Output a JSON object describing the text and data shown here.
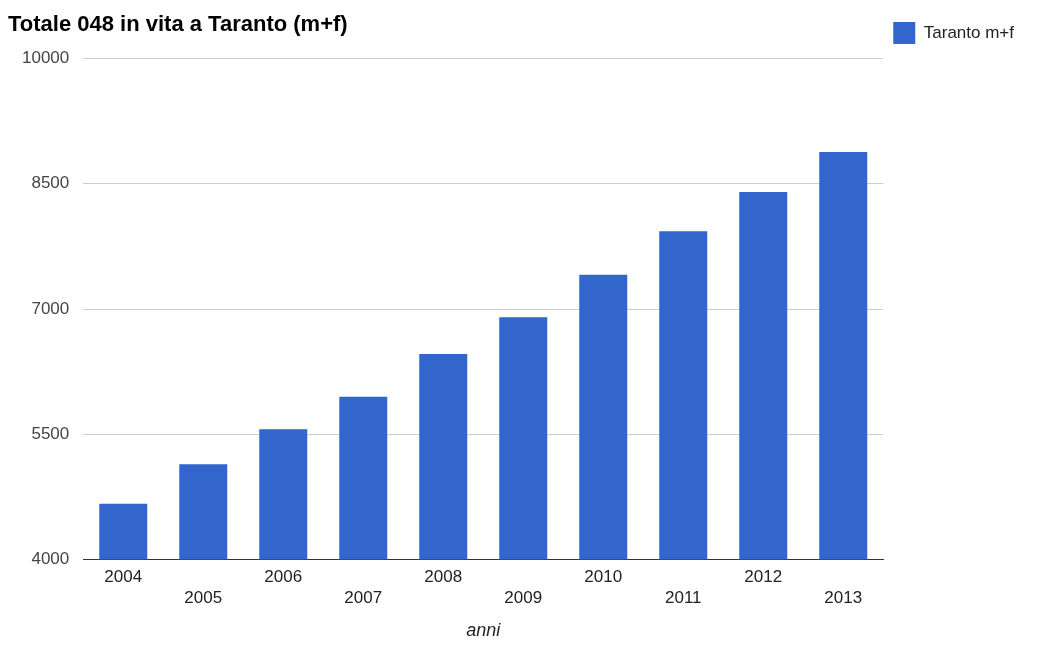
{
  "chart_data": {
    "type": "bar",
    "title": "Totale 048 in vita a Taranto (m+f)",
    "xlabel": "anni",
    "categories": [
      "2004",
      "2005",
      "2006",
      "2007",
      "2008",
      "2009",
      "2010",
      "2011",
      "2012",
      "2013"
    ],
    "series": [
      {
        "name": "Taranto m+f",
        "color": "#3366cc",
        "values": [
          4670,
          5140,
          5560,
          5950,
          6460,
          6900,
          7410,
          7930,
          8400,
          8880
        ]
      }
    ],
    "ylim": [
      4000,
      10000
    ],
    "yticks": [
      4000,
      5500,
      7000,
      8500,
      10000
    ],
    "grid": "y",
    "legend": "top right"
  }
}
